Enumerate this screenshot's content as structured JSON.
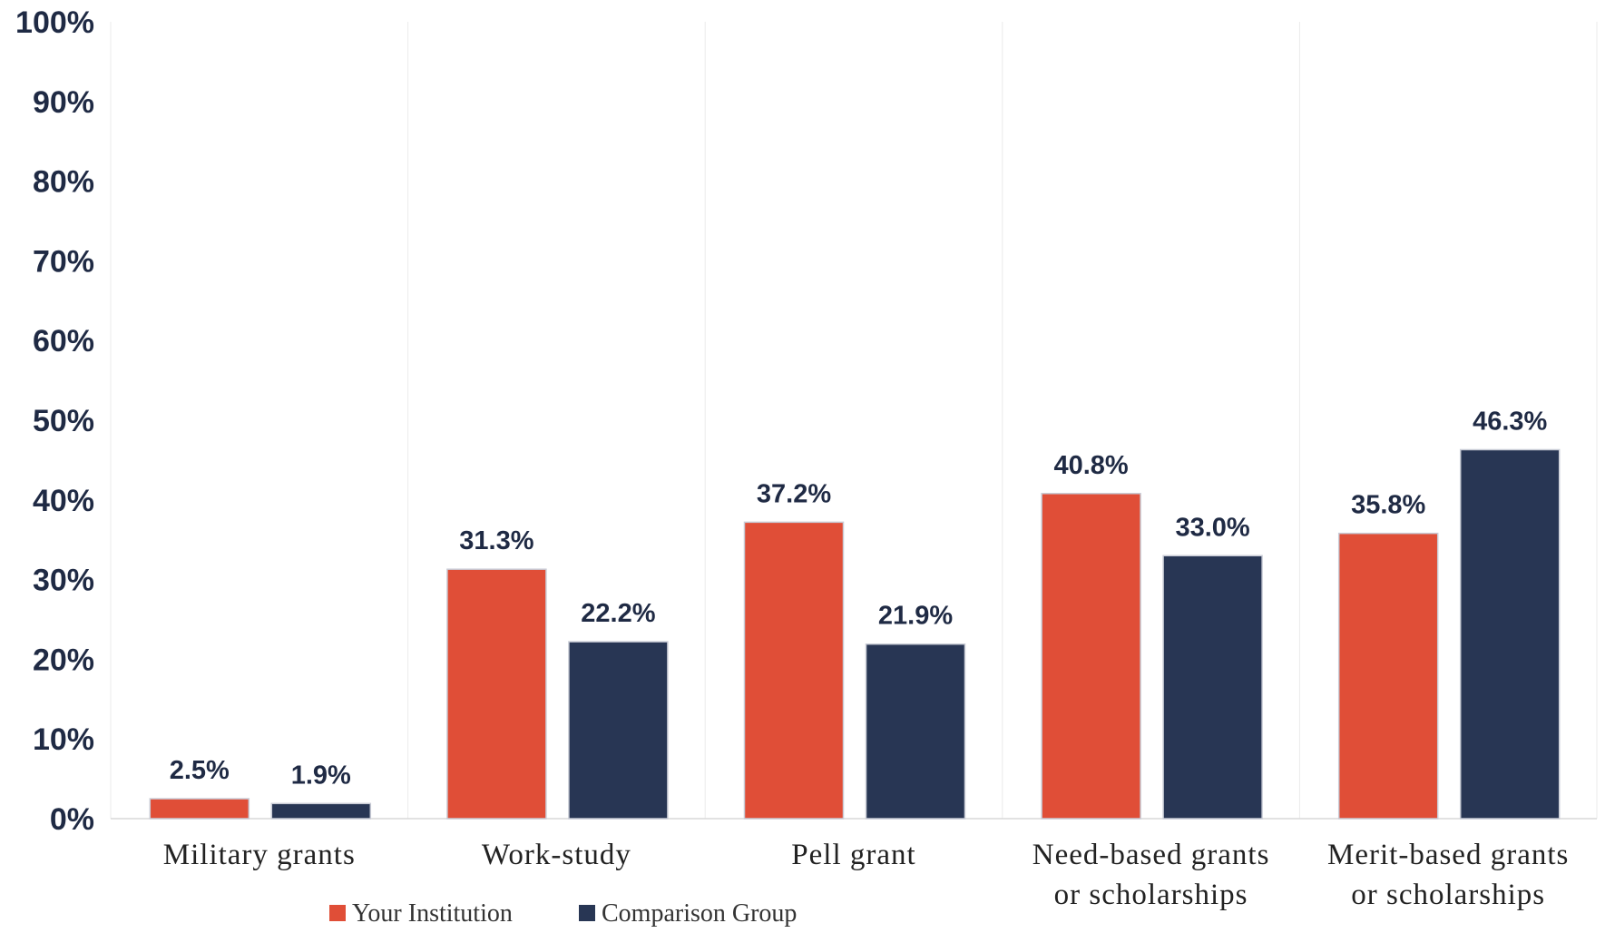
{
  "colors": {
    "your_institution": "#e04e37",
    "comparison_group": "#283654",
    "divider": "#ebebeb",
    "axis": "#d9d9d9"
  },
  "chart_data": {
    "type": "bar",
    "categories": [
      [
        "Military grants"
      ],
      [
        "Work-study"
      ],
      [
        "Pell grant"
      ],
      [
        "Need-based grants",
        "or scholarships"
      ],
      [
        "Merit-based grants",
        "or scholarships"
      ]
    ],
    "series": [
      {
        "name": "Your Institution",
        "values": [
          2.5,
          31.3,
          37.2,
          40.8,
          35.8
        ],
        "labels": [
          "2.5%",
          "31.3%",
          "37.2%",
          "40.8%",
          "35.8%"
        ]
      },
      {
        "name": "Comparison Group",
        "values": [
          1.9,
          22.2,
          21.9,
          33.0,
          46.3
        ],
        "labels": [
          "1.9%",
          "22.2%",
          "21.9%",
          "33.0%",
          "46.3%"
        ]
      }
    ],
    "ylim": [
      0,
      100
    ],
    "yticks": [
      "0%",
      "10%",
      "20%",
      "30%",
      "40%",
      "50%",
      "60%",
      "70%",
      "80%",
      "90%",
      "100%"
    ],
    "legend_position": "bottom-center",
    "grid": false
  }
}
